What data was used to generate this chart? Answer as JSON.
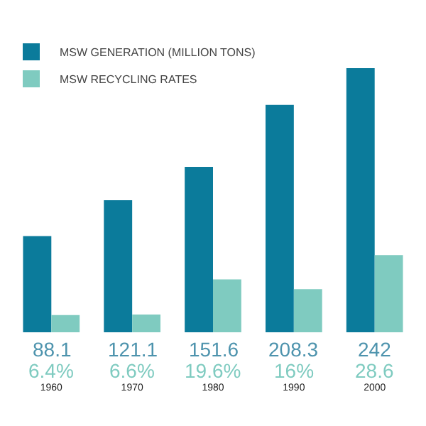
{
  "chart_data": {
    "type": "bar",
    "categories": [
      "1960",
      "1970",
      "1980",
      "1990",
      "2000"
    ],
    "series": [
      {
        "name": "MSW GENERATION (MILLION TONS)",
        "color": "#0b7b9b",
        "values": [
          88.1,
          121.1,
          151.6,
          208.3,
          242
        ],
        "value_labels": [
          "88.1",
          "121.1",
          "151.6",
          "208.3",
          "242"
        ]
      },
      {
        "name": "MSW RECYCLING RATES",
        "color": "#7fcbc0",
        "axis": "y2",
        "values": [
          6.4,
          6.6,
          19.6,
          16,
          28.6
        ],
        "value_labels": [
          "6.4%",
          "6.6%",
          "19.6%",
          "16%",
          "28.6"
        ]
      }
    ],
    "legend": "top left",
    "tick_labels": "x"
  }
}
